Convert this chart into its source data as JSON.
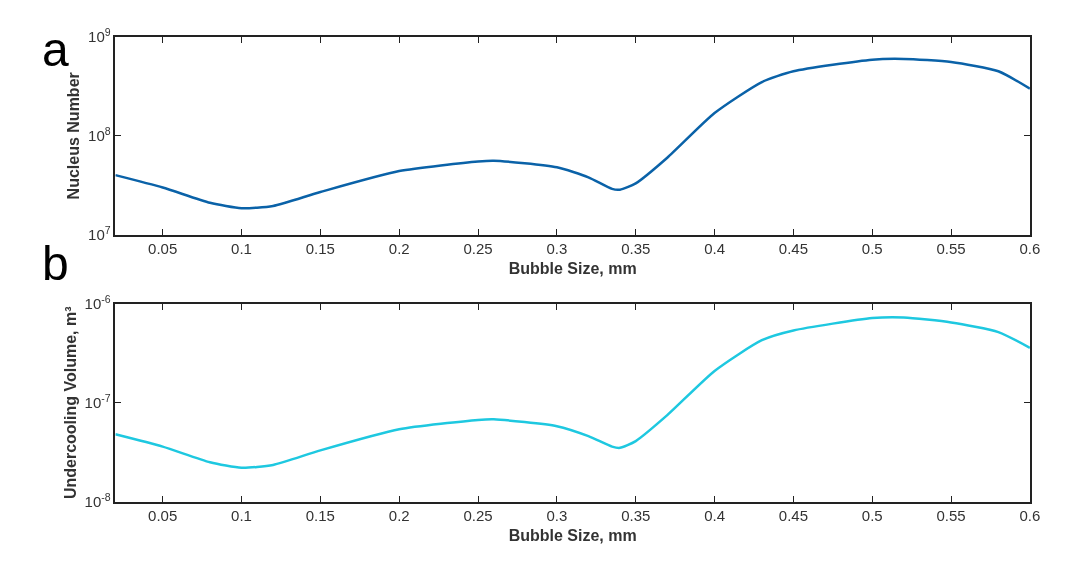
{
  "chart_data": [
    {
      "type": "line",
      "xlabel": "Bubble Size, mm",
      "ylabel": "Nucleus Number",
      "annotations": [
        "a"
      ],
      "log": "y",
      "marker": "none",
      "line_style": "solid",
      "xlim": [
        0.02,
        0.6
      ],
      "xticks": [
        0.05,
        0.1,
        0.15,
        0.2,
        0.25,
        0.3,
        0.35,
        0.4,
        0.45,
        0.5,
        0.55,
        0.6
      ],
      "ylim": [
        10000000,
        1000000000
      ],
      "yticks": [
        {
          "value": 10000000,
          "label": "10$^{7}$"
        },
        {
          "value": 100000000,
          "label": "10$^{8}$"
        },
        {
          "value": 1000000000,
          "label": "10$^{9}$"
        }
      ],
      "x": [
        0.02,
        0.05,
        0.08,
        0.1,
        0.12,
        0.15,
        0.2,
        0.25,
        0.26,
        0.3,
        0.32,
        0.335,
        0.34,
        0.35,
        0.37,
        0.4,
        0.43,
        0.45,
        0.5,
        0.52,
        0.55,
        0.58,
        0.6
      ],
      "series": [
        {
          "color": "#0a62a8",
          "values": [
            40000000,
            30000000,
            21000000,
            18500000,
            19500000,
            27000000,
            44000000,
            55000000,
            56000000,
            48000000,
            38000000,
            29000000,
            28500000,
            33000000,
            60000000,
            170000000,
            350000000,
            450000000,
            590000000,
            600000000,
            560000000,
            450000000,
            300000000
          ]
        }
      ]
    },
    {
      "type": "line",
      "xlabel": "Bubble Size, mm",
      "ylabel": "Undercooling Volume, m³",
      "annotations": [
        "b"
      ],
      "log": "y",
      "marker": "none",
      "line_style": "solid",
      "xlim": [
        0.02,
        0.6
      ],
      "xticks": [
        0.05,
        0.1,
        0.15,
        0.2,
        0.25,
        0.3,
        0.35,
        0.4,
        0.45,
        0.5,
        0.55,
        0.6
      ],
      "ylim": [
        1e-08,
        1e-06
      ],
      "yticks": [
        {
          "value": 1e-08,
          "label": "10$^{-8}$"
        },
        {
          "value": 1e-07,
          "label": "10$^{-7}$"
        },
        {
          "value": 1e-06,
          "label": "10$^{-6}$"
        }
      ],
      "x": [
        0.02,
        0.05,
        0.08,
        0.1,
        0.12,
        0.15,
        0.2,
        0.25,
        0.26,
        0.3,
        0.32,
        0.335,
        0.34,
        0.35,
        0.37,
        0.4,
        0.43,
        0.45,
        0.5,
        0.52,
        0.55,
        0.58,
        0.6
      ],
      "series": [
        {
          "color": "#1ec8e0",
          "values": [
            4.8e-08,
            3.6e-08,
            2.5e-08,
            2.2e-08,
            2.35e-08,
            3.3e-08,
            5.4e-08,
            6.7e-08,
            6.8e-08,
            5.8e-08,
            4.6e-08,
            3.6e-08,
            3.5e-08,
            4.1e-08,
            7.5e-08,
            2.1e-07,
            4.3e-07,
            5.4e-07,
            7.2e-07,
            7.3e-07,
            6.5e-07,
            5.2e-07,
            3.6e-07
          ]
        }
      ]
    }
  ]
}
